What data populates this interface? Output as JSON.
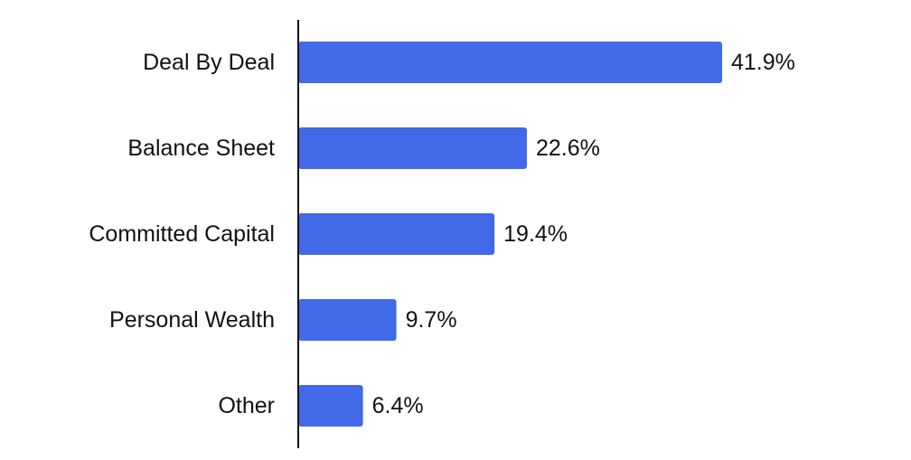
{
  "chart_data": {
    "type": "bar",
    "orientation": "horizontal",
    "title": "",
    "xlabel": "",
    "ylabel": "",
    "categories": [
      "Deal By Deal",
      "Balance Sheet",
      "Committed Capital",
      "Personal Wealth",
      "Other"
    ],
    "values": [
      41.9,
      22.6,
      19.4,
      9.7,
      6.4
    ],
    "value_labels": [
      "41.9%",
      "22.6%",
      "19.4%",
      "9.7%",
      "6.4%"
    ],
    "xlim": [
      0,
      41.9
    ],
    "grid": false,
    "legend": "none",
    "bar_color": "#4169E8",
    "axis_color": "#111111",
    "text_color": "#111111"
  }
}
